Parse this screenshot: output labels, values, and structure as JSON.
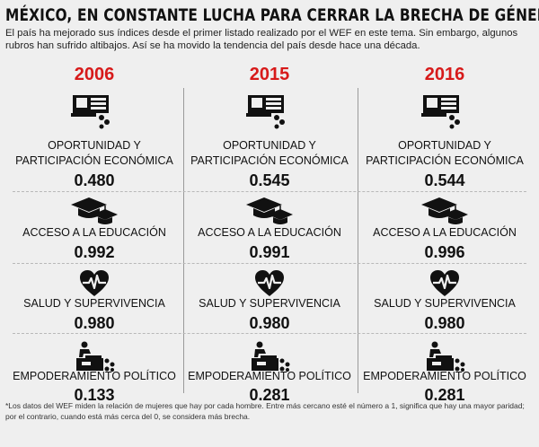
{
  "title": "MÉXICO, EN CONSTANTE LUCHA PARA CERRAR LA BRECHA DE GÉNERO",
  "subtitle": "El país ha mejorado sus índices desde el primer listado realizado por el WEF en este tema. Sin embargo, algunos rubros han sufrido altibajos. Así se ha movido la tendencia del país desde hace una década.",
  "categories": {
    "economic_line1": "OPORTUNIDAD Y",
    "economic_line2": "PARTICIPACIÓN ECONÓMICA",
    "education": "ACCESO A LA EDUCACIÓN",
    "health": "SALUD Y SUPERVIVENCIA",
    "political": "EMPODERAMIENTO POLÍTICO"
  },
  "icons": {
    "economic": "cash-register-coins-icon",
    "education": "graduation-caps-icon",
    "health": "heart-pulse-icon",
    "political": "podium-speaker-icon"
  },
  "years": [
    {
      "year": "2006",
      "economic": "0.480",
      "education": "0.992",
      "health": "0.980",
      "political": "0.133"
    },
    {
      "year": "2015",
      "economic": "0.545",
      "education": "0.991",
      "health": "0.980",
      "political": "0.281"
    },
    {
      "year": "2016",
      "economic": "0.544",
      "education": "0.996",
      "health": "0.980",
      "political": "0.281"
    }
  ],
  "colors": {
    "year": "#d71a1a",
    "text": "#111111",
    "background": "#efefef"
  },
  "footnote": "*Los datos del WEF miden la relación de mujeres que hay por cada hombre. Entre más cercano esté el número a 1, significa que hay una mayor paridad; por el contrario, cuando está más cerca del 0, se considera más brecha."
}
